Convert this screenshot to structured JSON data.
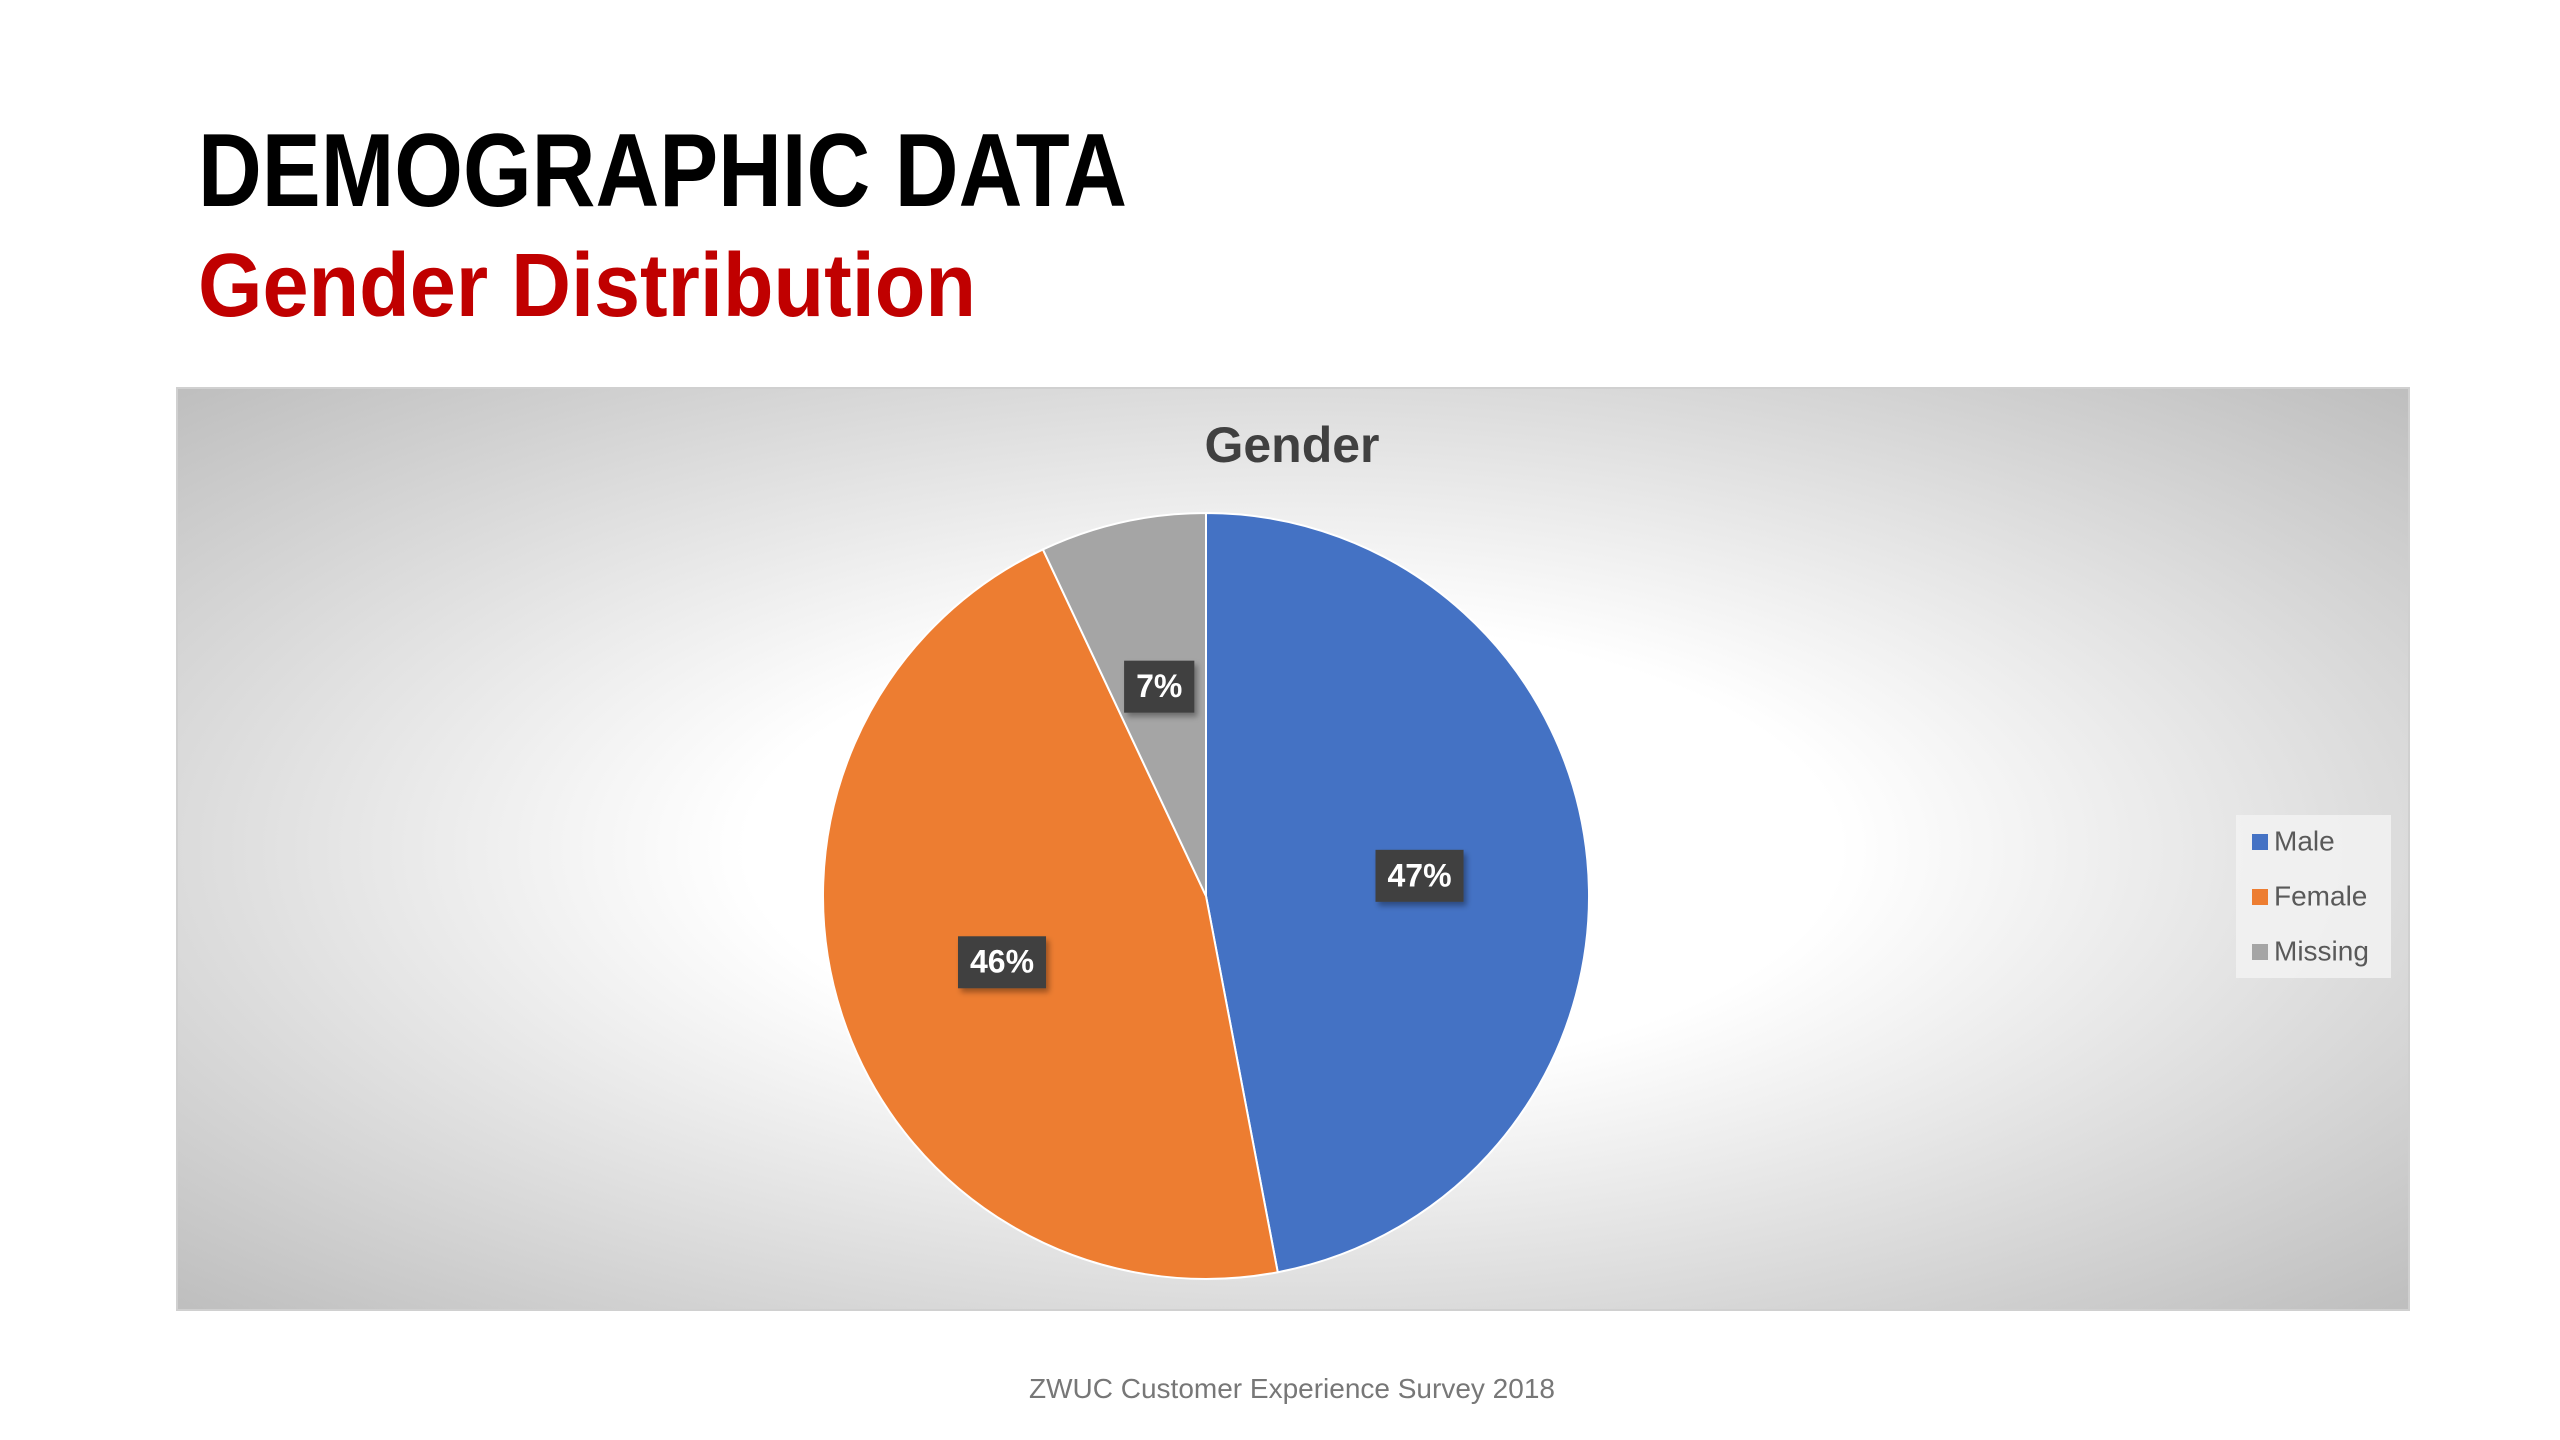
{
  "slide": {
    "title": "DEMOGRAPHIC DATA",
    "subtitle": "Gender Distribution",
    "footer": "ZWUC Customer Experience Survey 2018"
  },
  "chart_data": {
    "type": "pie",
    "title": "Gender",
    "categories": [
      "Male",
      "Female",
      "Missing"
    ],
    "values": [
      47,
      46,
      7
    ],
    "value_labels": [
      "47%",
      "46%",
      "7%"
    ],
    "colors": [
      "#4472c4",
      "#ed7d31",
      "#a5a5a5"
    ],
    "legend": "right"
  }
}
